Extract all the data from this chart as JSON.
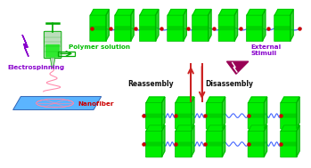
{
  "bg_color": "#ffffff",
  "title": "",
  "labels": {
    "electrospinning": "Electrospinning",
    "polymer_solution": "Polymer solution",
    "nanofiber": "Nanofiber",
    "reassembly": "Reassembly",
    "disassembly": "Disassembly",
    "external_stimuli": "External\nStimuli"
  },
  "colors": {
    "green_unit": "#00ee00",
    "green_dark": "#00aa00",
    "green_side": "#00cc00",
    "blue_chain": "#4466ff",
    "red_dot": "#cc0000",
    "purple_lightning": "#8800cc",
    "pink_fiber": "#ff88aa",
    "blue_mat": "#44aaff",
    "red_arrow": "#cc2222",
    "label_green": "#00bb00",
    "label_purple": "#8800cc",
    "label_red": "#cc0000",
    "label_black": "#111111",
    "syringe_fill": "#bbddbb",
    "syringe_green": "#00aa00",
    "purple_tri": "#990055"
  }
}
